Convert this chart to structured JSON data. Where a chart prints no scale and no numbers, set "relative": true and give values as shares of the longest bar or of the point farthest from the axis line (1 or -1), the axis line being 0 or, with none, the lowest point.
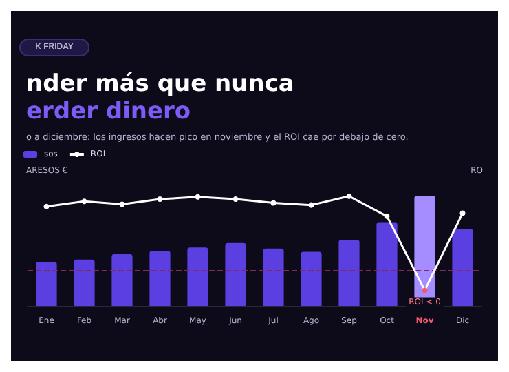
{
  "chart_data": {
    "type": "bar",
    "relative": true,
    "title": "nder más que nunca\nerder dinero",
    "subtitle": "o a diciembre: los ingresos hacen pico en noviembre y el ROI cae por debajo de cero.",
    "ylabel": "ARESOS €",
    "y2label": "RO",
    "legend": "top left",
    "grid": false,
    "annotations": [
      "K FRIDAY",
      "ROI < 0"
    ],
    "categories": [
      "Ene",
      "Feb",
      "Mar",
      "Abr",
      "May",
      "Jun",
      "Jul",
      "Ago",
      "Sep",
      "Oct",
      "Nov",
      "Dic"
    ],
    "series": [
      {
        "name": "sos",
        "color": "#5b3fe0",
        "colors": [
          "#5b3fe0",
          "#5b3fe0",
          "#5b3fe0",
          "#5b3fe0",
          "#5b3fe0",
          "#5b3fe0",
          "#5b3fe0",
          "#5b3fe0",
          "#5b3fe0",
          "#5b3fe0",
          "#a58cff",
          "#5b3fe0"
        ],
        "values": [
          0.4,
          0.42,
          0.47,
          0.5,
          0.53,
          0.57,
          0.52,
          0.49,
          0.6,
          0.76,
          1,
          0.7
        ]
      },
      {
        "name": "ROI",
        "type": "line",
        "axis": "y2",
        "color": "#ffffff",
        "marker": "circle",
        "colors": [
          "#ffffff",
          "#ffffff",
          "#ffffff",
          "#ffffff",
          "#ffffff",
          "#ffffff",
          "#ffffff",
          "#ffffff",
          "#ffffff",
          "#ffffff",
          "#f05a6e",
          "#ffffff"
        ],
        "values": [
          0.86,
          0.93,
          0.89,
          0.96,
          0.99,
          0.96,
          0.91,
          0.88,
          1,
          0.73,
          -0.27,
          0.77
        ]
      }
    ],
    "ref_lines": [
      {
        "axis": "y2",
        "value": 0,
        "color": "#7a2f5a",
        "line_style": "dashed"
      }
    ]
  }
}
